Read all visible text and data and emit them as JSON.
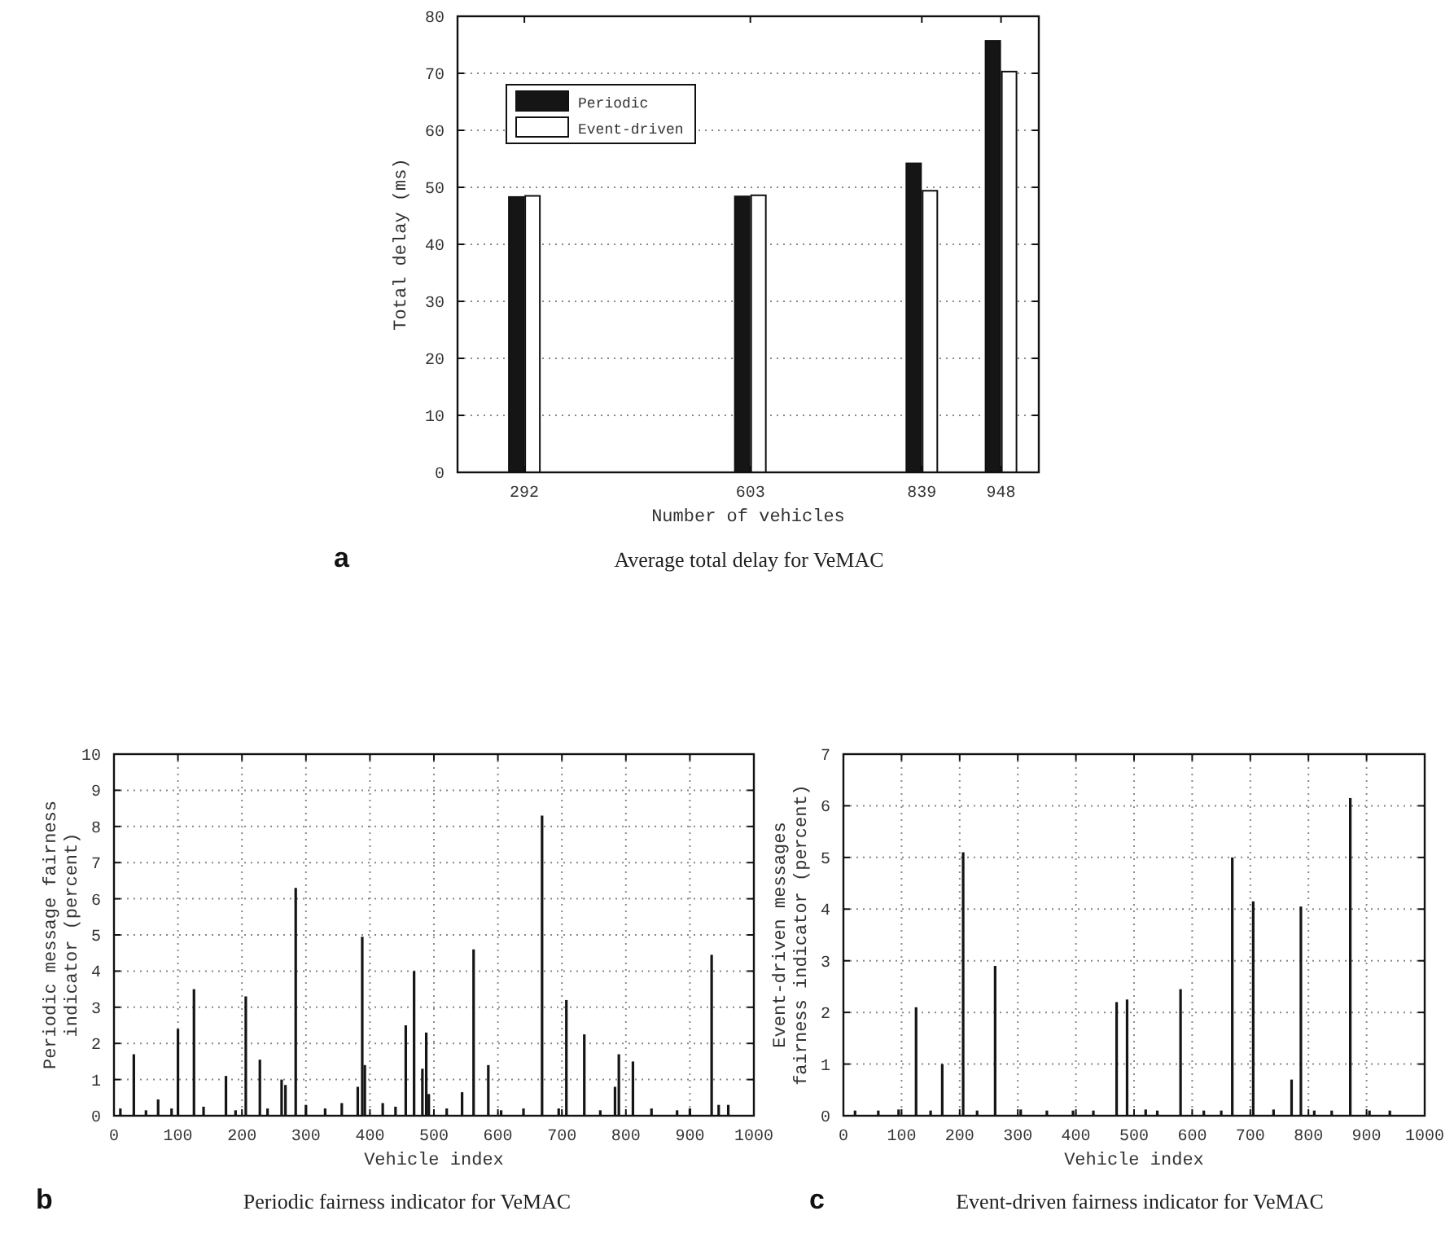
{
  "chart_data": [
    {
      "type": "bar",
      "title": "Average total delay for VeMAC",
      "xlabel": "Number of vehicles",
      "ylabel": "Total delay (ms)",
      "annotations": [
        "a"
      ],
      "x": [
        292,
        603,
        839,
        948
      ],
      "xlim": [
        200,
        1000
      ],
      "xticks": [
        292,
        603,
        839,
        948
      ],
      "ylim": [
        0,
        80
      ],
      "yticks": [
        0,
        10,
        20,
        30,
        40,
        50,
        60,
        70,
        80
      ],
      "grid": "y",
      "legend": "top left",
      "series": [
        {
          "name": "Periodic",
          "color": "#151515",
          "values": [
            48.3,
            48.4,
            54.2,
            75.7
          ]
        },
        {
          "name": "Event-driven",
          "color": "#ffffff",
          "values": [
            48.5,
            48.6,
            49.4,
            70.3
          ]
        }
      ]
    },
    {
      "type": "bar",
      "title": "Periodic fairness indicator for VeMAC",
      "xlabel": "Vehicle index",
      "ylabel": "Periodic message fairness indicator (percent)",
      "annotations": [
        "b"
      ],
      "xlim": [
        0,
        1000
      ],
      "xticks": [
        0,
        100,
        200,
        300,
        400,
        500,
        600,
        700,
        800,
        900,
        1000
      ],
      "ylim": [
        0,
        10
      ],
      "yticks": [
        0,
        1,
        2,
        3,
        4,
        5,
        6,
        7,
        8,
        9,
        10
      ],
      "grid": true,
      "series": [
        {
          "color": "#151515",
          "x": [
            10,
            31,
            50,
            69,
            90,
            100,
            125,
            140,
            175,
            190,
            206,
            228,
            240,
            262,
            268,
            284,
            300,
            330,
            356,
            381,
            388,
            392,
            420,
            440,
            456,
            469,
            482,
            488,
            492,
            520,
            544,
            562,
            585,
            605,
            640,
            669,
            695,
            707,
            735,
            760,
            783,
            789,
            811,
            840,
            880,
            900,
            934,
            945,
            960
          ],
          "values": [
            0.2,
            1.7,
            0.15,
            0.45,
            0.2,
            2.4,
            3.5,
            0.25,
            1.1,
            0.15,
            3.3,
            1.55,
            0.2,
            1.0,
            0.85,
            6.3,
            0.3,
            0.2,
            0.35,
            0.8,
            4.95,
            1.4,
            0.35,
            0.25,
            2.5,
            4.0,
            1.3,
            2.3,
            0.6,
            0.2,
            0.65,
            4.6,
            1.4,
            0.15,
            0.2,
            8.3,
            0.2,
            3.2,
            2.25,
            0.15,
            0.8,
            1.7,
            1.5,
            0.2,
            0.15,
            0.2,
            4.45,
            0.3,
            0.3
          ]
        }
      ]
    },
    {
      "type": "bar",
      "title": "Event-driven fairness indicator for VeMAC",
      "xlabel": "Vehicle index",
      "ylabel": "Event-driven messages fairness indicator (percent)",
      "annotations": [
        "c"
      ],
      "xlim": [
        0,
        1000
      ],
      "xticks": [
        0,
        100,
        200,
        300,
        400,
        500,
        600,
        700,
        800,
        900,
        1000
      ],
      "ylim": [
        0,
        7
      ],
      "yticks": [
        0,
        1,
        2,
        3,
        4,
        5,
        6,
        7
      ],
      "grid": true,
      "series": [
        {
          "color": "#151515",
          "x": [
            20,
            60,
            95,
            125,
            150,
            170,
            206,
            230,
            261,
            305,
            350,
            395,
            430,
            470,
            488,
            520,
            540,
            580,
            620,
            650,
            669,
            705,
            740,
            771,
            787,
            810,
            840,
            872,
            905,
            940
          ],
          "values": [
            0.1,
            0.1,
            0.12,
            2.1,
            0.1,
            1.0,
            5.1,
            0.1,
            2.9,
            0.12,
            0.1,
            0.1,
            0.1,
            2.2,
            2.25,
            0.12,
            0.1,
            2.45,
            0.1,
            0.1,
            5.0,
            4.15,
            0.12,
            0.7,
            4.05,
            0.1,
            0.1,
            6.15,
            0.1,
            0.1
          ]
        }
      ]
    }
  ]
}
